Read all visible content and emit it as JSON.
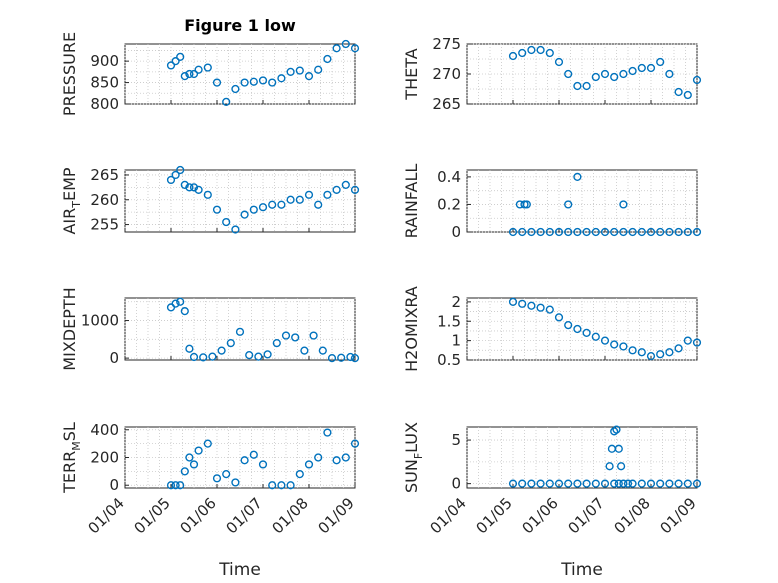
{
  "figure": {
    "title": "Figure 1 low",
    "xlabel": "Time"
  },
  "style": {
    "marker_color": "#0072BD",
    "axis_color": "#262626",
    "grid_color": "#c8c8c8"
  },
  "chart_data": [
    {
      "type": "scatter",
      "ylabel": "PRESSURE",
      "title": "Figure 1 low",
      "xlim": [
        "01/04",
        "01/09"
      ],
      "ylim": [
        800,
        940
      ],
      "yticks": [
        800,
        850,
        900
      ],
      "xticks": [],
      "grid": true,
      "minor_grid": true,
      "x": [
        1.0,
        1.1,
        1.2,
        1.3,
        1.4,
        1.5,
        1.6,
        1.8,
        2.0,
        2.2,
        2.4,
        2.6,
        2.8,
        3.0,
        3.2,
        3.4,
        3.6,
        3.8,
        4.0,
        4.2,
        4.4,
        4.6,
        4.8,
        5.0
      ],
      "y": [
        890,
        900,
        910,
        865,
        870,
        870,
        880,
        885,
        850,
        805,
        835,
        850,
        852,
        855,
        850,
        860,
        875,
        878,
        865,
        880,
        905,
        930,
        940,
        930
      ]
    },
    {
      "type": "scatter",
      "ylabel": "THETA",
      "xlim": [
        "01/04",
        "01/09"
      ],
      "ylim": [
        265,
        275
      ],
      "yticks": [
        265,
        270,
        275
      ],
      "xticks": [],
      "grid": true,
      "minor_grid": true,
      "x": [
        1.0,
        1.2,
        1.4,
        1.6,
        1.8,
        2.0,
        2.2,
        2.4,
        2.6,
        2.8,
        3.0,
        3.2,
        3.4,
        3.6,
        3.8,
        4.0,
        4.2,
        4.4,
        4.6,
        4.8,
        5.0
      ],
      "y": [
        273,
        273.5,
        274,
        274,
        273.5,
        272,
        270,
        268,
        268,
        269.5,
        270,
        269.5,
        270,
        270.5,
        271,
        271,
        272,
        270,
        267,
        266.5,
        269
      ]
    },
    {
      "type": "scatter",
      "ylabel": "AIR_TEMP",
      "ylabel_main": "AIR",
      "ylabel_sub": "T",
      "ylabel_rest": "EMP",
      "xlim": [
        "01/04",
        "01/09"
      ],
      "ylim": [
        253.5,
        266
      ],
      "yticks": [
        255,
        260,
        265
      ],
      "xticks": [],
      "grid": true,
      "minor_grid": true,
      "x": [
        1.0,
        1.1,
        1.2,
        1.3,
        1.4,
        1.5,
        1.6,
        1.8,
        2.0,
        2.2,
        2.4,
        2.6,
        2.8,
        3.0,
        3.2,
        3.4,
        3.6,
        3.8,
        4.0,
        4.2,
        4.4,
        4.6,
        4.8,
        5.0
      ],
      "y": [
        264,
        265,
        266,
        263,
        262.5,
        262.5,
        262,
        261,
        258,
        255.5,
        254,
        257,
        258,
        258.5,
        259,
        259,
        260,
        260,
        261,
        259,
        261,
        262,
        263,
        262
      ]
    },
    {
      "type": "scatter",
      "ylabel": "RAINFALL",
      "xlim": [
        "01/04",
        "01/09"
      ],
      "ylim": [
        0,
        0.45
      ],
      "yticks": [
        0,
        0.2,
        0.4
      ],
      "xticks": [],
      "grid": true,
      "minor_grid": true,
      "x": [
        1.0,
        1.2,
        1.4,
        1.6,
        1.8,
        2.0,
        2.2,
        2.4,
        2.6,
        2.8,
        3.0,
        3.2,
        3.4,
        3.6,
        3.8,
        4.0,
        4.2,
        4.4,
        4.6,
        4.8,
        5.0,
        1.15,
        1.25,
        1.3,
        2.2,
        2.4,
        3.4
      ],
      "y": [
        0,
        0,
        0,
        0,
        0,
        0,
        0,
        0,
        0,
        0,
        0,
        0,
        0,
        0,
        0,
        0,
        0,
        0,
        0,
        0,
        0,
        0.2,
        0.2,
        0.2,
        0.2,
        0.4,
        0.2
      ]
    },
    {
      "type": "scatter",
      "ylabel": "MIXDEPTH",
      "xlim": [
        "01/04",
        "01/09"
      ],
      "ylim": [
        -50,
        1600
      ],
      "yticks": [
        0,
        1000
      ],
      "xticks": [],
      "grid": true,
      "minor_grid": true,
      "x": [
        1.0,
        1.1,
        1.2,
        1.3,
        1.4,
        1.5,
        1.7,
        1.9,
        2.1,
        2.3,
        2.5,
        2.7,
        2.9,
        3.1,
        3.3,
        3.5,
        3.7,
        3.9,
        4.1,
        4.3,
        4.5,
        4.7,
        4.9,
        5.0
      ],
      "y": [
        1350,
        1450,
        1500,
        1250,
        250,
        30,
        20,
        40,
        200,
        400,
        700,
        80,
        40,
        100,
        400,
        600,
        550,
        200,
        600,
        200,
        0,
        10,
        30,
        0
      ]
    },
    {
      "type": "scatter",
      "ylabel": "H2OMIXRA",
      "xlim": [
        "01/04",
        "01/09"
      ],
      "ylim": [
        0.5,
        2.1
      ],
      "yticks": [
        0.5,
        1,
        1.5,
        2
      ],
      "xticks": [],
      "grid": true,
      "minor_grid": true,
      "x": [
        1.0,
        1.2,
        1.4,
        1.6,
        1.8,
        2.0,
        2.2,
        2.4,
        2.6,
        2.8,
        3.0,
        3.2,
        3.4,
        3.6,
        3.8,
        4.0,
        4.2,
        4.4,
        4.6,
        4.8,
        5.0
      ],
      "y": [
        2.0,
        1.95,
        1.9,
        1.85,
        1.8,
        1.6,
        1.4,
        1.3,
        1.2,
        1.1,
        1.0,
        0.9,
        0.85,
        0.75,
        0.7,
        0.6,
        0.65,
        0.7,
        0.8,
        1.0,
        0.95
      ]
    },
    {
      "type": "scatter",
      "ylabel": "TERR_MSL",
      "ylabel_main": "TERR",
      "ylabel_sub": "M",
      "ylabel_rest": "SL",
      "xlim": [
        "01/04",
        "01/09"
      ],
      "ylim": [
        -20,
        420
      ],
      "yticks": [
        0,
        200,
        400
      ],
      "xticks": [
        "01/04",
        "01/05",
        "01/06",
        "01/07",
        "01/08",
        "01/09"
      ],
      "grid": true,
      "minor_grid": true,
      "x": [
        1.0,
        1.1,
        1.2,
        1.3,
        1.4,
        1.5,
        1.6,
        1.8,
        2.0,
        2.2,
        2.4,
        2.6,
        2.8,
        3.0,
        3.2,
        3.4,
        3.6,
        3.8,
        4.0,
        4.2,
        4.4,
        4.6,
        4.8,
        5.0
      ],
      "y": [
        0,
        0,
        0,
        100,
        200,
        150,
        250,
        300,
        50,
        80,
        20,
        180,
        220,
        150,
        0,
        0,
        0,
        80,
        150,
        200,
        380,
        180,
        200,
        300
      ]
    },
    {
      "type": "scatter",
      "ylabel": "SUN_FLUX",
      "ylabel_main": "SUN",
      "ylabel_sub": "F",
      "ylabel_rest": "LUX",
      "xlim": [
        "01/04",
        "01/09"
      ],
      "ylim": [
        -0.5,
        6.5
      ],
      "yticks": [
        0,
        5
      ],
      "xticks": [
        "01/04",
        "01/05",
        "01/06",
        "01/07",
        "01/08",
        "01/09"
      ],
      "grid": true,
      "minor_grid": true,
      "x": [
        1.0,
        1.2,
        1.4,
        1.6,
        1.8,
        2.0,
        2.2,
        2.4,
        2.6,
        2.8,
        3.0,
        3.2,
        3.3,
        3.4,
        3.5,
        3.6,
        3.8,
        4.0,
        4.2,
        4.4,
        4.6,
        4.8,
        5.0,
        3.1,
        3.15,
        3.2,
        3.25,
        3.3,
        3.35
      ],
      "y": [
        0,
        0,
        0,
        0,
        0,
        0,
        0,
        0,
        0,
        0,
        0,
        0,
        0,
        0,
        0,
        0,
        0,
        0,
        0,
        0,
        0,
        0,
        0,
        2,
        4,
        6,
        6.2,
        4,
        2
      ]
    }
  ]
}
